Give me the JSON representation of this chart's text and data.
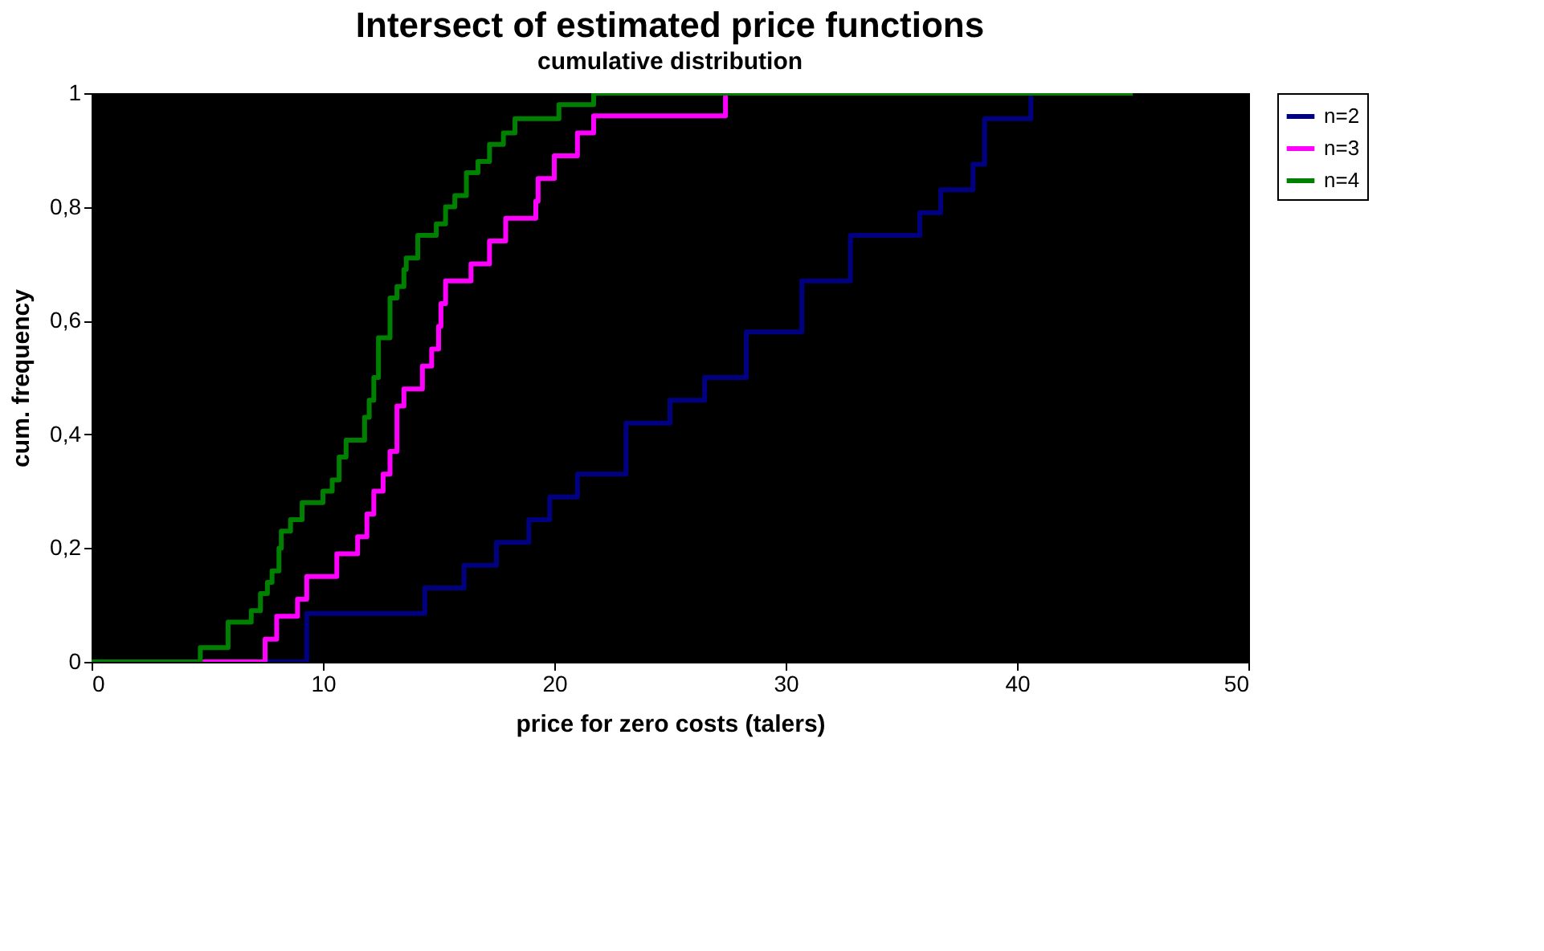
{
  "chart_data": {
    "type": "step",
    "title": "Intersect of estimated price functions",
    "subtitle": "cumulative distribution",
    "xlabel": "price for zero costs (talers)",
    "ylabel": "cum. frequency",
    "xlim": [
      0,
      50
    ],
    "xticks": [
      0,
      10,
      20,
      30,
      40,
      50
    ],
    "ylim": [
      0,
      1
    ],
    "yticks": [
      0,
      {
        "value": 0.2,
        "label": "0,2"
      },
      {
        "value": 0.4,
        "label": "0,4"
      },
      {
        "value": 0.6,
        "label": "0,6"
      },
      {
        "value": 0.8,
        "label": "0,8"
      },
      1
    ],
    "grid": false,
    "legend": "right",
    "marker": "none",
    "line_style": "solid",
    "series": [
      {
        "name": "n=2",
        "color": "#000080",
        "x": [
          0,
          9.3,
          14.4,
          16.1,
          17.5,
          18.9,
          19.8,
          21.0,
          23.1,
          25.0,
          26.5,
          28.3,
          30.7,
          32.8,
          35.8,
          36.7,
          38.1,
          38.6,
          40.6
        ],
        "values": [
          0,
          0.085,
          0.13,
          0.17,
          0.21,
          0.25,
          0.29,
          0.33,
          0.42,
          0.46,
          0.5,
          0.58,
          0.67,
          0.75,
          0.79,
          0.83,
          0.875,
          0.955,
          1
        ]
      },
      {
        "name": "n=3",
        "color": "#ff00ff",
        "x": [
          0,
          7.5,
          8.0,
          8.9,
          9.3,
          10.6,
          11.5,
          11.9,
          12.2,
          12.6,
          12.9,
          13.2,
          13.5,
          14.3,
          14.7,
          15.0,
          15.1,
          15.3,
          16.4,
          17.2,
          17.9,
          19.2,
          19.3,
          20.0,
          21.0,
          21.7,
          27.4
        ],
        "values": [
          0,
          0.04,
          0.08,
          0.11,
          0.15,
          0.19,
          0.22,
          0.26,
          0.3,
          0.33,
          0.37,
          0.45,
          0.48,
          0.52,
          0.55,
          0.59,
          0.63,
          0.67,
          0.7,
          0.74,
          0.78,
          0.81,
          0.85,
          0.89,
          0.93,
          0.96,
          1
        ]
      },
      {
        "name": "n=4",
        "color": "#008000",
        "x": [
          0,
          4.7,
          5.9,
          6.9,
          7.3,
          7.6,
          7.8,
          8.1,
          8.2,
          8.6,
          9.1,
          10.0,
          10.4,
          10.7,
          11.0,
          11.8,
          12.0,
          12.2,
          12.4,
          12.9,
          13.2,
          13.5,
          13.6,
          14.1,
          14.9,
          15.3,
          15.7,
          16.2,
          16.7,
          17.2,
          17.8,
          18.3,
          20.2,
          21.7,
          45
        ],
        "values": [
          0,
          0.025,
          0.07,
          0.09,
          0.12,
          0.14,
          0.16,
          0.2,
          0.23,
          0.25,
          0.28,
          0.3,
          0.32,
          0.36,
          0.39,
          0.43,
          0.46,
          0.5,
          0.57,
          0.64,
          0.66,
          0.69,
          0.71,
          0.75,
          0.77,
          0.8,
          0.82,
          0.86,
          0.88,
          0.91,
          0.93,
          0.955,
          0.98,
          1,
          1
        ]
      }
    ]
  }
}
